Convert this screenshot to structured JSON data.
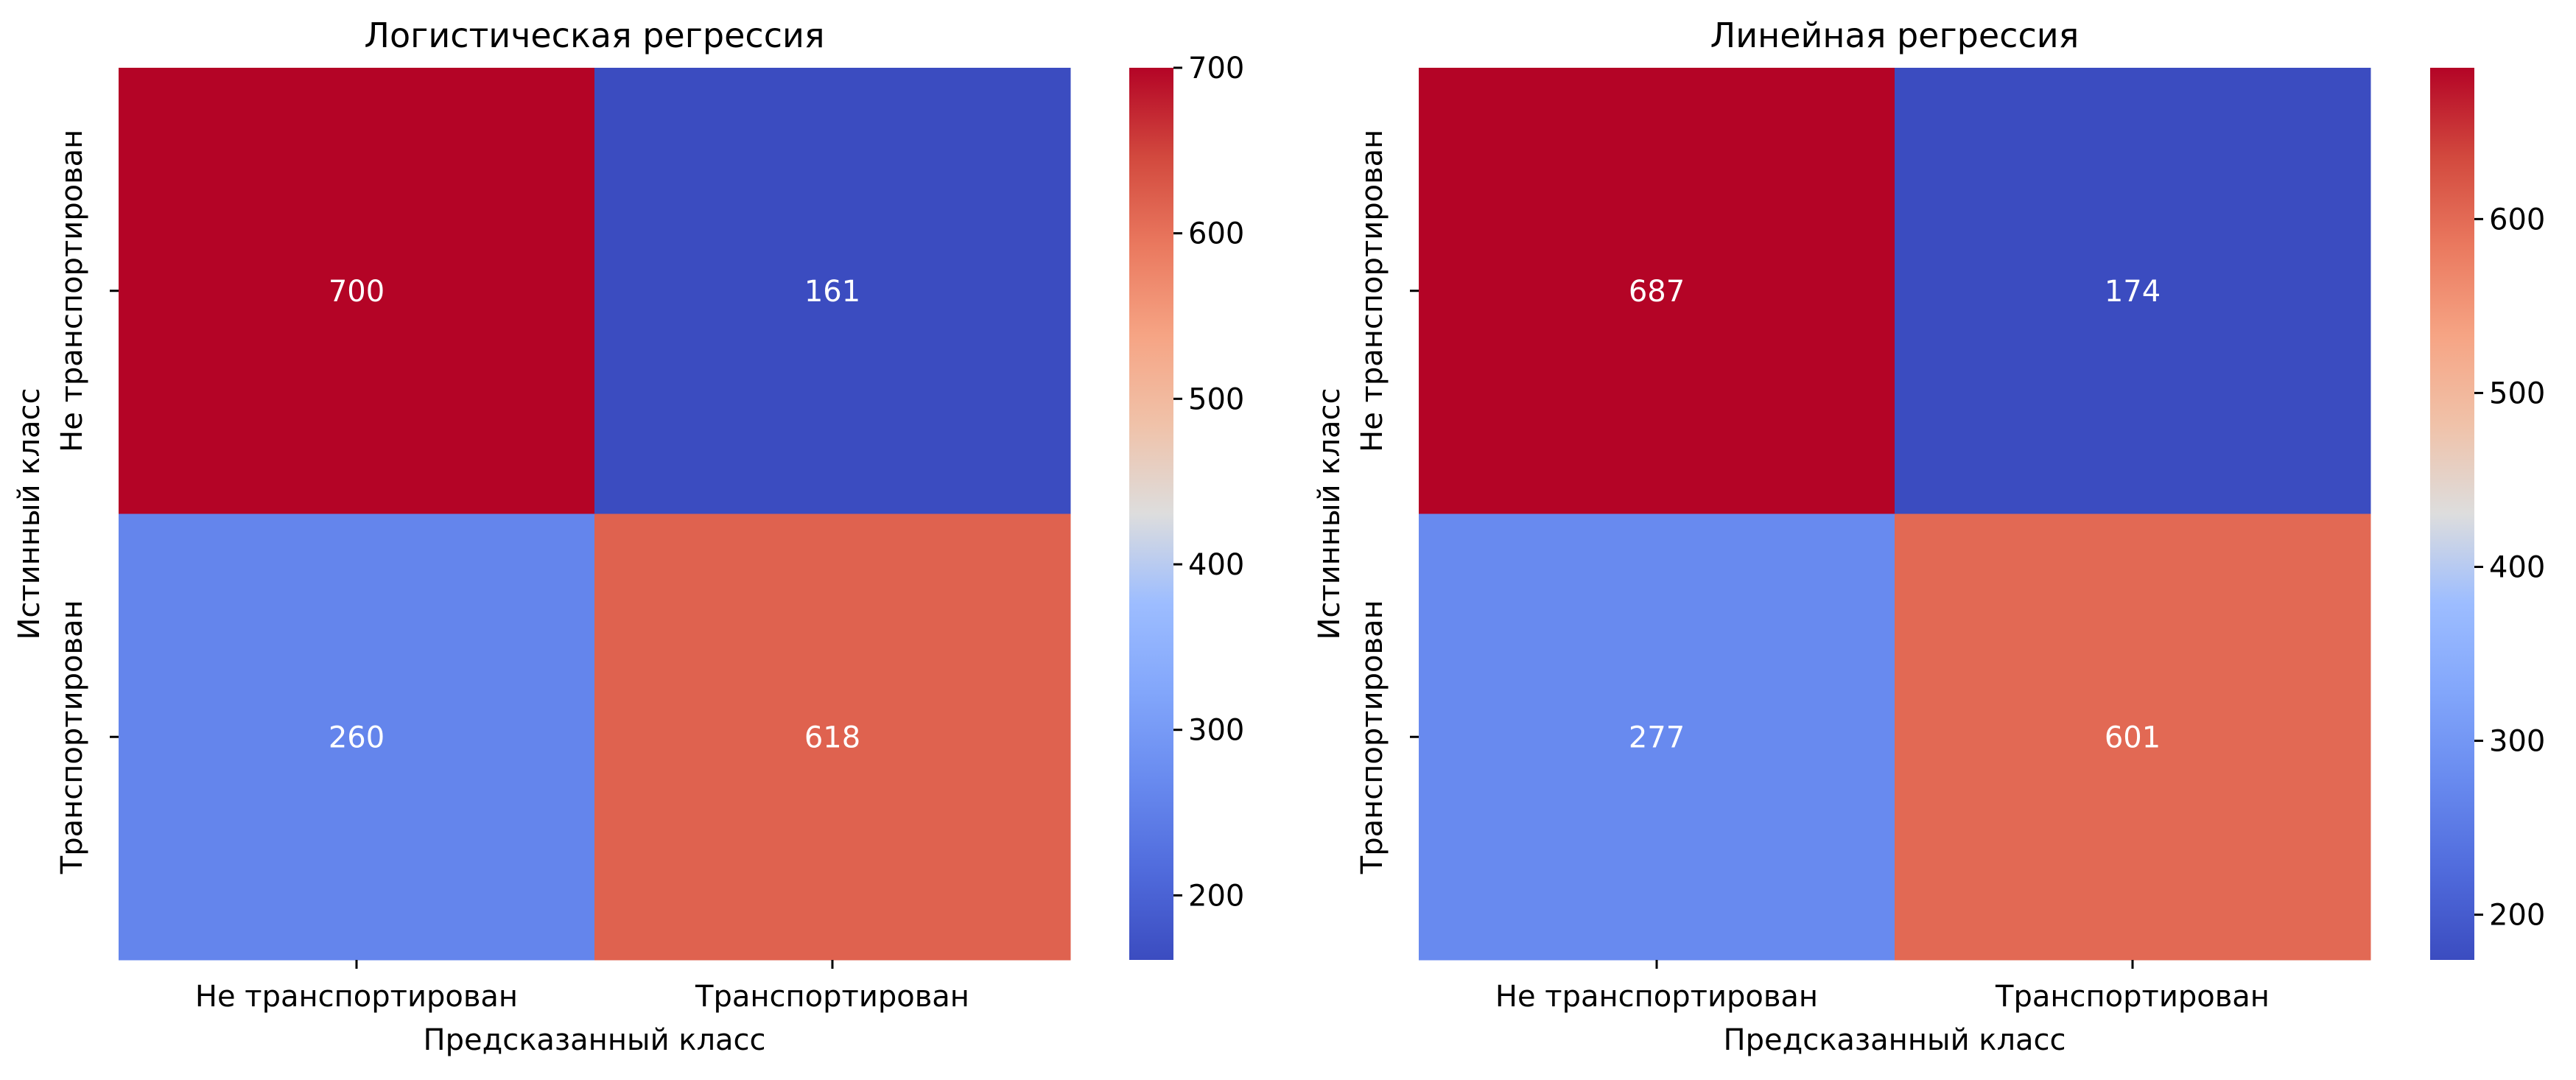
{
  "chart_data": [
    {
      "type": "heatmap",
      "title": "Логистическая регрессия",
      "xlabel": "Предсказанный класс",
      "ylabel": "Истинный класс",
      "x_categories": [
        "Не транспортирован",
        "Транспортирован"
      ],
      "y_categories": [
        "Не транспортирован",
        "Транспортирован"
      ],
      "values": [
        [
          700,
          161
        ],
        [
          260,
          618
        ]
      ],
      "colormap": "coolwarm",
      "colorbar": {
        "min": 161,
        "max": 700,
        "ticks": [
          200,
          300,
          400,
          500,
          600,
          700
        ]
      }
    },
    {
      "type": "heatmap",
      "title": "Линейная регрессия",
      "xlabel": "Предсказанный класс",
      "ylabel": "Истинный класс",
      "x_categories": [
        "Не транспортирован",
        "Транспортирован"
      ],
      "y_categories": [
        "Не транспортирован",
        "Транспортирован"
      ],
      "values": [
        [
          687,
          174
        ],
        [
          277,
          601
        ]
      ],
      "colormap": "coolwarm",
      "colorbar": {
        "min": 174,
        "max": 687,
        "ticks": [
          200,
          300,
          400,
          500,
          600
        ]
      }
    }
  ]
}
